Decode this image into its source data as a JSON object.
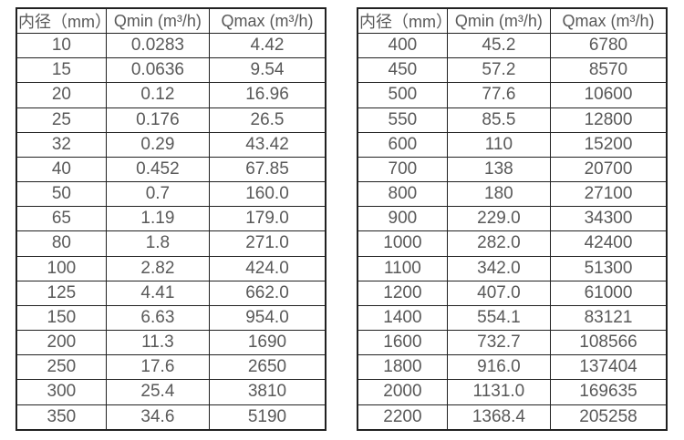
{
  "colors": {
    "text": "#595959",
    "border": "#212121",
    "table_background": "#ffffff",
    "page_background": "#ffffff"
  },
  "tables": [
    {
      "name": "small-diameter-flow-ranges",
      "headers": [
        "内径（mm）",
        "Qmin (m³/h)",
        "Qmax (m³/h)"
      ],
      "rows": [
        [
          "10",
          "0.0283",
          "4.42"
        ],
        [
          "15",
          "0.0636",
          "9.54"
        ],
        [
          "20",
          "0.12",
          "16.96"
        ],
        [
          "25",
          "0.176",
          "26.5"
        ],
        [
          "32",
          "0.29",
          "43.42"
        ],
        [
          "40",
          "0.452",
          "67.85"
        ],
        [
          "50",
          "0.7",
          "160.0"
        ],
        [
          "65",
          "1.19",
          "179.0"
        ],
        [
          "80",
          "1.8",
          "271.0"
        ],
        [
          "100",
          "2.82",
          "424.0"
        ],
        [
          "125",
          "4.41",
          "662.0"
        ],
        [
          "150",
          "6.63",
          "954.0"
        ],
        [
          "200",
          "11.3",
          "1690"
        ],
        [
          "250",
          "17.6",
          "2650"
        ],
        [
          "300",
          "25.4",
          "3810"
        ],
        [
          "350",
          "34.6",
          "5190"
        ]
      ]
    },
    {
      "name": "large-diameter-flow-ranges",
      "headers": [
        "内径（mm）",
        "Qmin (m³/h)",
        "Qmax (m³/h)"
      ],
      "rows": [
        [
          "400",
          "45.2",
          "6780"
        ],
        [
          "450",
          "57.2",
          "8570"
        ],
        [
          "500",
          "77.6",
          "10600"
        ],
        [
          "550",
          "85.5",
          "12800"
        ],
        [
          "600",
          "110",
          "15200"
        ],
        [
          "700",
          "138",
          "20700"
        ],
        [
          "800",
          "180",
          "27100"
        ],
        [
          "900",
          "229.0",
          "34300"
        ],
        [
          "1000",
          "282.0",
          "42400"
        ],
        [
          "1100",
          "342.0",
          "51300"
        ],
        [
          "1200",
          "407.0",
          "61000"
        ],
        [
          "1400",
          "554.1",
          "83121"
        ],
        [
          "1600",
          "732.7",
          "108566"
        ],
        [
          "1800",
          "916.0",
          "137404"
        ],
        [
          "2000",
          "1131.0",
          "169635"
        ],
        [
          "2200",
          "1368.4",
          "205258"
        ]
      ]
    }
  ]
}
